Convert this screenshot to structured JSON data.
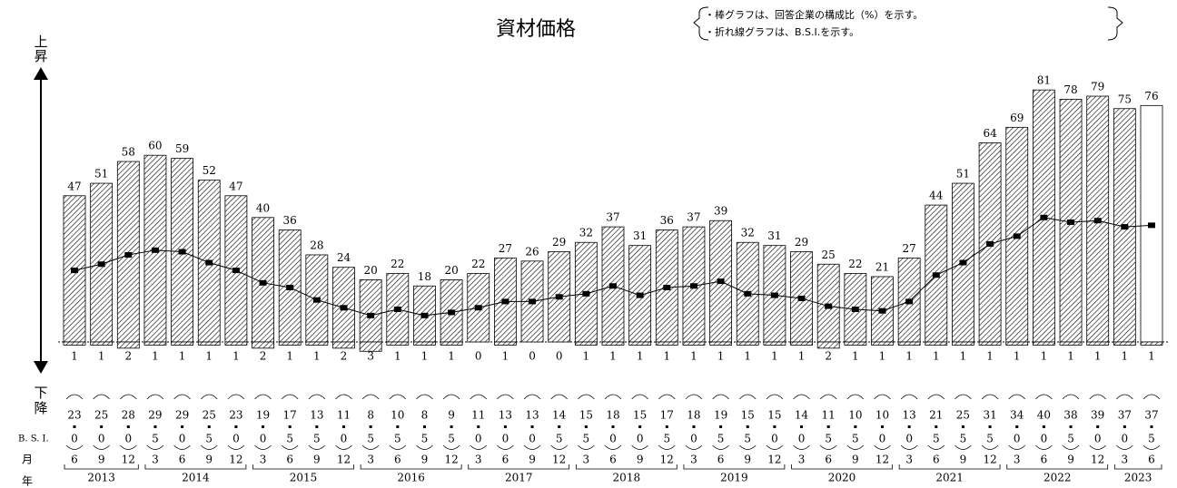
{
  "chart_data": {
    "type": "bar_line",
    "title": "資材価格",
    "notes": [
      "・棒グラフは、回答企業の構成比（%）を示す。",
      "・折れ線グラフは、B.S.I.を示す。"
    ],
    "up_label": [
      "上",
      "昇"
    ],
    "down_label": [
      "下",
      "降"
    ],
    "row_labels": {
      "bsi": "B. S. I.",
      "month": "月",
      "year": "年"
    },
    "months": [
      6,
      9,
      12,
      3,
      6,
      9,
      12,
      3,
      6,
      9,
      12,
      3,
      6,
      9,
      12,
      3,
      6,
      9,
      12,
      3,
      6,
      9,
      12,
      3,
      6,
      9,
      12,
      3,
      6,
      9,
      12,
      3,
      6,
      9,
      12,
      3,
      6,
      9,
      12,
      3,
      6
    ],
    "years": [
      2013,
      2013,
      2013,
      2014,
      2014,
      2014,
      2014,
      2015,
      2015,
      2015,
      2015,
      2016,
      2016,
      2016,
      2016,
      2017,
      2017,
      2017,
      2017,
      2018,
      2018,
      2018,
      2018,
      2019,
      2019,
      2019,
      2019,
      2020,
      2020,
      2020,
      2020,
      2021,
      2021,
      2021,
      2021,
      2022,
      2022,
      2022,
      2022,
      2023,
      2023
    ],
    "up": {
      "values": [
        47,
        51,
        58,
        60,
        59,
        52,
        47,
        40,
        36,
        28,
        24,
        20,
        22,
        18,
        20,
        22,
        27,
        26,
        29,
        32,
        37,
        31,
        36,
        37,
        39,
        32,
        31,
        29,
        25,
        22,
        21,
        27,
        44,
        51,
        64,
        69,
        81,
        78,
        79,
        75,
        76
      ],
      "fills": [
        "hatch",
        "hatch",
        "hatch",
        "hatch",
        "hatch",
        "hatch",
        "hatch",
        "hatch",
        "hatch",
        "hatch",
        "hatch",
        "hatch",
        "hatch",
        "hatch",
        "hatch",
        "hatch",
        "hatch",
        "hatch",
        "hatch",
        "hatch",
        "hatch",
        "hatch",
        "hatch",
        "hatch",
        "hatch",
        "hatch",
        "hatch",
        "hatch",
        "hatch",
        "hatch",
        "hatch",
        "hatch",
        "hatch",
        "hatch",
        "hatch",
        "hatch",
        "hatch",
        "hatch",
        "hatch",
        "hatch",
        "#ffffff"
      ]
    },
    "down": {
      "values": [
        1,
        1,
        2,
        1,
        1,
        1,
        1,
        2,
        1,
        1,
        2,
        3,
        1,
        1,
        1,
        0,
        1,
        0,
        0,
        1,
        1,
        1,
        1,
        1,
        1,
        1,
        1,
        1,
        2,
        1,
        1,
        1,
        1,
        1,
        1,
        1,
        1,
        1,
        1,
        1,
        1
      ],
      "fill": "hatch"
    },
    "bsi": {
      "color": "#000000",
      "values": [
        23.0,
        25.0,
        28.0,
        29.5,
        29.0,
        25.5,
        23.0,
        19.0,
        17.5,
        13.5,
        11.0,
        8.5,
        10.5,
        8.5,
        9.5,
        11.0,
        13.0,
        13.0,
        14.5,
        15.5,
        18.0,
        15.0,
        17.5,
        18.0,
        19.5,
        15.5,
        15.0,
        14.0,
        11.5,
        10.5,
        10.0,
        13.0,
        21.5,
        25.5,
        31.5,
        34.0,
        40.0,
        38.5,
        39.0,
        37.0,
        37.5
      ],
      "value_labels": [
        [
          "23",
          "0"
        ],
        [
          "25",
          "0"
        ],
        [
          "28",
          "0"
        ],
        [
          "29",
          "5"
        ],
        [
          "29",
          "0"
        ],
        [
          "25",
          "5"
        ],
        [
          "23",
          "0"
        ],
        [
          "19",
          "0"
        ],
        [
          "17",
          "5"
        ],
        [
          "13",
          "5"
        ],
        [
          "11",
          "0"
        ],
        [
          "8",
          "5"
        ],
        [
          "10",
          "5"
        ],
        [
          "8",
          "5"
        ],
        [
          "9",
          "5"
        ],
        [
          "11",
          "0"
        ],
        [
          "13",
          "0"
        ],
        [
          "13",
          "0"
        ],
        [
          "14",
          "5"
        ],
        [
          "15",
          "5"
        ],
        [
          "18",
          "0"
        ],
        [
          "15",
          "0"
        ],
        [
          "17",
          "5"
        ],
        [
          "18",
          "0"
        ],
        [
          "19",
          "5"
        ],
        [
          "15",
          "5"
        ],
        [
          "15",
          "0"
        ],
        [
          "14",
          "0"
        ],
        [
          "11",
          "5"
        ],
        [
          "10",
          "5"
        ],
        [
          "10",
          "0"
        ],
        [
          "13",
          "0"
        ],
        [
          "21",
          "5"
        ],
        [
          "25",
          "5"
        ],
        [
          "31",
          "5"
        ],
        [
          "34",
          "0"
        ],
        [
          "40",
          "0"
        ],
        [
          "38",
          "5"
        ],
        [
          "39",
          "0"
        ],
        [
          "37",
          "0"
        ],
        [
          "37",
          "5"
        ]
      ]
    }
  }
}
